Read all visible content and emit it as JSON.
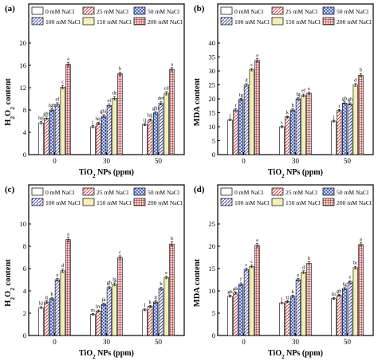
{
  "figure": {
    "legend_order": [
      "0 mM NaCl",
      "25 mM NaCl",
      "50 mM NaCl",
      "100 mM NaCl",
      "150 mM NaCl",
      "200 mM NaCl"
    ],
    "series_colors": [
      "#ffffff",
      "#e05050",
      "#3355cc",
      "#4455bb",
      "#f4f0b8",
      "#b02525"
    ]
  },
  "chart_data": [
    {
      "type": "bar",
      "panel_label": "(a)",
      "title": "",
      "xlabel": "TiO2 NPs (ppm)",
      "ylabel": "H2O2 content",
      "categories": [
        "0",
        "30",
        "50"
      ],
      "ylim": [
        0,
        20
      ],
      "yticks": [
        "0",
        "4",
        "8",
        "12",
        "16",
        "20"
      ],
      "ytick_values": [
        0,
        4,
        8,
        12,
        16,
        20
      ],
      "legend_placement": "top",
      "series": [
        {
          "name": "0 mM NaCl",
          "values": [
            5.7,
            5.0,
            5.4
          ],
          "errors": [
            0.2,
            0.2,
            0.2
          ],
          "letters": [
            "hij",
            "j",
            "ij"
          ]
        },
        {
          "name": "25 mM NaCl",
          "values": [
            6.5,
            5.6,
            6.2
          ],
          "errors": [
            0.25,
            0.2,
            0.2
          ],
          "letters": [
            "ghi",
            "hij",
            "hij"
          ]
        },
        {
          "name": "50 mM NaCl",
          "values": [
            8.0,
            6.9,
            7.5
          ],
          "errors": [
            0.25,
            0.25,
            0.25
          ],
          "letters": [
            "fgh",
            "ghij",
            "ghi"
          ]
        },
        {
          "name": "100 mM NaCl",
          "values": [
            9.0,
            8.8,
            9.2
          ],
          "errors": [
            0.3,
            0.3,
            0.3
          ],
          "letters": [
            "ef",
            "ef",
            "def"
          ]
        },
        {
          "name": "150 mM NaCl",
          "values": [
            12.1,
            10.1,
            11.0
          ],
          "errors": [
            0.3,
            0.3,
            0.3
          ],
          "letters": [
            "c",
            "de",
            "cd"
          ]
        },
        {
          "name": "200 mM NaCl",
          "values": [
            16.2,
            14.5,
            15.3
          ],
          "errors": [
            0.35,
            0.3,
            0.3
          ],
          "letters": [
            "a",
            "b",
            "a"
          ]
        }
      ]
    },
    {
      "type": "bar",
      "panel_label": "(b)",
      "title": "",
      "xlabel": "TiO2 NPs (ppm)",
      "ylabel": "MDA content",
      "categories": [
        "0",
        "30",
        "50"
      ],
      "ylim": [
        0,
        40
      ],
      "yticks": [
        "0",
        "5",
        "10",
        "15",
        "20",
        "25",
        "30",
        "35",
        "40"
      ],
      "ytick_values": [
        0,
        5,
        10,
        15,
        20,
        25,
        30,
        35,
        40
      ],
      "legend_placement": "top",
      "series": [
        {
          "name": "0 mM NaCl",
          "values": [
            12.5,
            10.0,
            12.0
          ],
          "errors": [
            0.3,
            0.3,
            0.3
          ],
          "letters": [
            "j",
            "s",
            "j"
          ]
        },
        {
          "name": "25 mM NaCl",
          "values": [
            16.0,
            13.5,
            15.8
          ],
          "errors": [
            0.4,
            0.3,
            0.4
          ],
          "letters": [
            "i",
            "k",
            "i"
          ]
        },
        {
          "name": "50 mM NaCl",
          "values": [
            19.8,
            16.0,
            18.5
          ],
          "errors": [
            0.4,
            0.4,
            0.4
          ],
          "letters": [
            "fg",
            "h",
            "gh"
          ]
        },
        {
          "name": "100 mM NaCl",
          "values": [
            25.0,
            20.0,
            18.2
          ],
          "errors": [
            0.5,
            0.4,
            0.4
          ],
          "letters": [
            "d",
            "fg",
            "gh"
          ]
        },
        {
          "name": "150 mM NaCl",
          "values": [
            30.5,
            21.2,
            25.0
          ],
          "errors": [
            0.5,
            0.5,
            0.5
          ],
          "letters": [
            "c",
            "ef",
            "d"
          ]
        },
        {
          "name": "200 mM NaCl",
          "values": [
            33.8,
            22.0,
            28.5
          ],
          "errors": [
            0.6,
            0.5,
            0.6
          ],
          "letters": [
            "a",
            "e",
            "b"
          ]
        }
      ]
    },
    {
      "type": "bar",
      "panel_label": "(c)",
      "title": "",
      "xlabel": "TiO2 NPs (ppm)",
      "ylabel": "H2O2 content",
      "categories": [
        "0",
        "30",
        "50"
      ],
      "ylim": [
        0,
        10
      ],
      "yticks": [
        "0",
        "2",
        "4",
        "6",
        "8",
        "10"
      ],
      "ytick_values": [
        0,
        2,
        4,
        6,
        8,
        10
      ],
      "legend_placement": "top",
      "series": [
        {
          "name": "0 mM NaCl",
          "values": [
            2.5,
            1.9,
            2.3
          ],
          "errors": [
            0.08,
            0.08,
            0.08
          ],
          "letters": [
            "kl",
            "m",
            "l"
          ]
        },
        {
          "name": "25 mM NaCl",
          "values": [
            3.0,
            2.2,
            2.6
          ],
          "errors": [
            0.1,
            0.08,
            0.08
          ],
          "letters": [
            "ij",
            "lm",
            "k"
          ]
        },
        {
          "name": "50 mM NaCl",
          "values": [
            3.3,
            2.8,
            3.0
          ],
          "errors": [
            0.1,
            0.1,
            0.1
          ],
          "letters": [
            "h",
            "jk",
            "ij"
          ]
        },
        {
          "name": "100 mM NaCl",
          "values": [
            5.0,
            4.3,
            4.2
          ],
          "errors": [
            0.12,
            0.12,
            0.12
          ],
          "letters": [
            "e",
            "gh",
            "h"
          ]
        },
        {
          "name": "150 mM NaCl",
          "values": [
            5.8,
            4.6,
            5.2
          ],
          "errors": [
            0.15,
            0.12,
            0.12
          ],
          "letters": [
            "d",
            "fg",
            "e"
          ]
        },
        {
          "name": "200 mM NaCl",
          "values": [
            8.6,
            7.0,
            8.2
          ],
          "errors": [
            0.2,
            0.15,
            0.2
          ],
          "letters": [
            "a",
            "c",
            "b"
          ]
        }
      ]
    },
    {
      "type": "bar",
      "panel_label": "(d)",
      "title": "",
      "xlabel": "TiO2 NPs (ppm)",
      "ylabel": "MDA content",
      "categories": [
        "0",
        "30",
        "50"
      ],
      "ylim": [
        0,
        25
      ],
      "yticks": [
        "0",
        "5",
        "10",
        "15",
        "20",
        "25"
      ],
      "ytick_values": [
        0,
        5,
        10,
        15,
        20,
        25
      ],
      "legend_placement": "top",
      "series": [
        {
          "name": "0 mM NaCl",
          "values": [
            8.8,
            7.3,
            8.3
          ],
          "errors": [
            0.2,
            0.2,
            0.2
          ],
          "letters": [
            "gh",
            "j",
            "hi"
          ]
        },
        {
          "name": "25 mM NaCl",
          "values": [
            9.5,
            7.6,
            9.0
          ],
          "errors": [
            0.25,
            0.2,
            0.2
          ],
          "letters": [
            "gh",
            "ij",
            "gh"
          ]
        },
        {
          "name": "50 mM NaCl",
          "values": [
            11.5,
            8.8,
            10.5
          ],
          "errors": [
            0.3,
            0.25,
            0.25
          ],
          "letters": [
            "f",
            "h",
            "fg"
          ]
        },
        {
          "name": "100 mM NaCl",
          "values": [
            14.8,
            12.5,
            12.0
          ],
          "errors": [
            0.3,
            0.3,
            0.3
          ],
          "letters": [
            "c",
            "e",
            "e"
          ]
        },
        {
          "name": "150 mM NaCl",
          "values": [
            15.5,
            14.2,
            15.2
          ],
          "errors": [
            0.3,
            0.3,
            0.3
          ],
          "letters": [
            "c",
            "d",
            "bc"
          ]
        },
        {
          "name": "200 mM NaCl",
          "values": [
            20.2,
            16.2,
            20.4
          ],
          "errors": [
            0.4,
            0.35,
            0.4
          ],
          "letters": [
            "a",
            "b",
            "a"
          ]
        }
      ]
    }
  ]
}
